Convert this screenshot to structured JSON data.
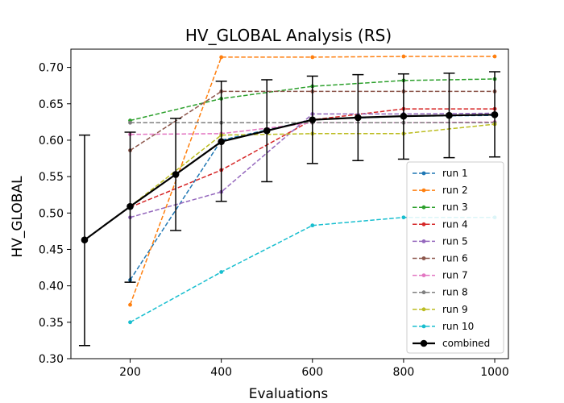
{
  "chart_data": {
    "type": "line",
    "title": "HV_GLOBAL Analysis (RS)",
    "xlabel": "Evaluations",
    "ylabel": "HV_GLOBAL",
    "xlim": [
      70,
      1030
    ],
    "ylim": [
      0.3,
      0.725
    ],
    "x_ticks": [
      "200",
      "400",
      "600",
      "800",
      "1000"
    ],
    "y_ticks": [
      "0.30",
      "0.35",
      "0.40",
      "0.45",
      "0.50",
      "0.55",
      "0.60",
      "0.65",
      "0.70"
    ],
    "grid": false,
    "legend_position": "lower-right",
    "x": [
      200,
      400,
      600,
      800,
      1000
    ],
    "series": [
      {
        "name": "run 1",
        "color": "#1f77b4",
        "values": [
          0.408,
          0.6,
          0.628,
          0.633,
          0.634
        ]
      },
      {
        "name": "run 2",
        "color": "#ff7f0e",
        "values": [
          0.374,
          0.714,
          0.714,
          0.715,
          0.715
        ]
      },
      {
        "name": "run 3",
        "color": "#2ca02c",
        "values": [
          0.627,
          0.657,
          0.674,
          0.682,
          0.684
        ]
      },
      {
        "name": "run 4",
        "color": "#d62728",
        "values": [
          0.508,
          0.559,
          0.628,
          0.643,
          0.643
        ]
      },
      {
        "name": "run 5",
        "color": "#9467bd",
        "values": [
          0.494,
          0.529,
          0.636,
          0.636,
          0.637
        ]
      },
      {
        "name": "run 6",
        "color": "#8c564b",
        "values": [
          0.586,
          0.667,
          0.667,
          0.667,
          0.667
        ]
      },
      {
        "name": "run 7",
        "color": "#e377c2",
        "values": [
          0.608,
          0.609,
          0.624,
          0.624,
          0.625
        ]
      },
      {
        "name": "run 8",
        "color": "#7f7f7f",
        "values": [
          0.624,
          0.624,
          0.624,
          0.624,
          0.624
        ]
      },
      {
        "name": "run 9",
        "color": "#bcbd22",
        "values": [
          0.509,
          0.607,
          0.609,
          0.609,
          0.622
        ]
      },
      {
        "name": "run 10",
        "color": "#17becf",
        "values": [
          0.35,
          0.419,
          0.483,
          0.494,
          0.494
        ]
      }
    ],
    "combined": {
      "name": "combined",
      "color": "#000000",
      "x": [
        100,
        200,
        300,
        400,
        500,
        600,
        700,
        800,
        900,
        1000
      ],
      "values": [
        0.463,
        0.509,
        0.553,
        0.598,
        0.613,
        0.628,
        0.631,
        0.633,
        0.634,
        0.635
      ],
      "err_low": [
        0.318,
        0.405,
        0.476,
        0.516,
        0.543,
        0.568,
        0.572,
        0.574,
        0.576,
        0.577
      ],
      "err_high": [
        0.607,
        0.611,
        0.63,
        0.681,
        0.683,
        0.688,
        0.69,
        0.691,
        0.692,
        0.694
      ]
    }
  }
}
